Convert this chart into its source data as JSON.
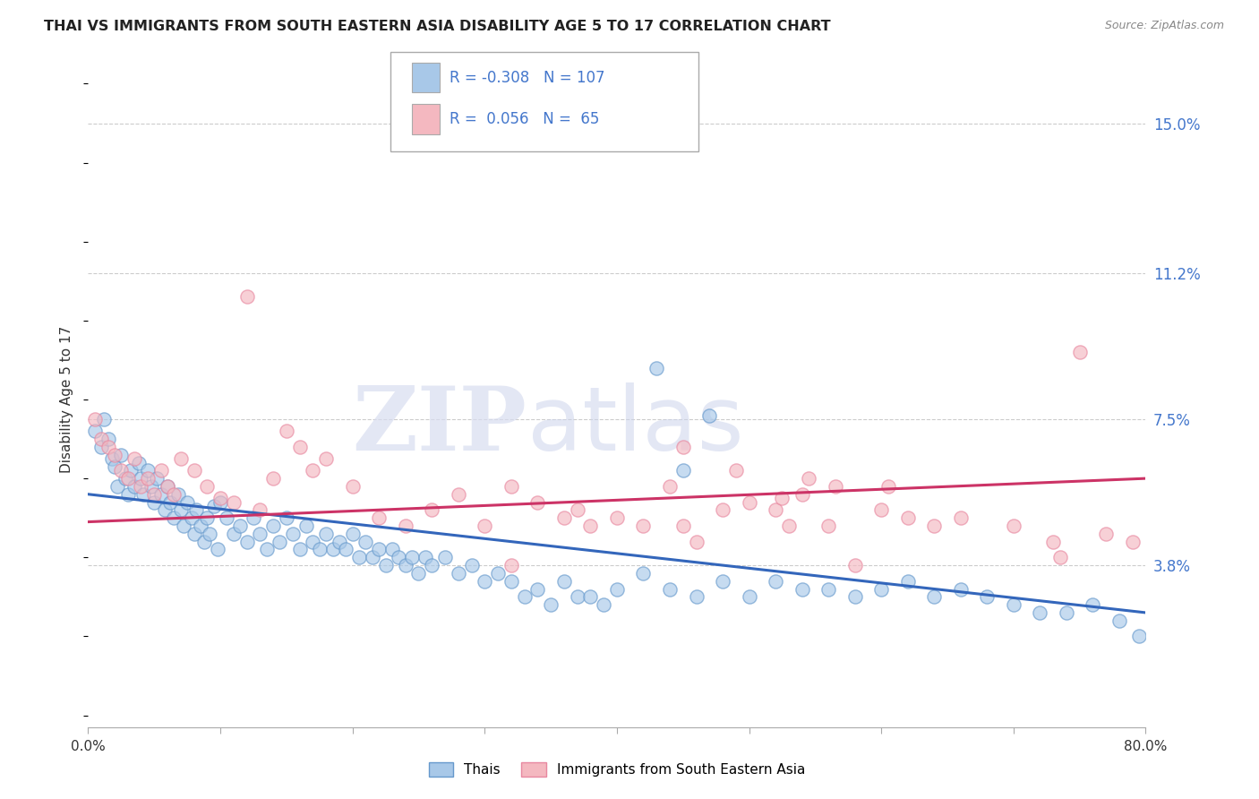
{
  "title": "THAI VS IMMIGRANTS FROM SOUTH EASTERN ASIA DISABILITY AGE 5 TO 17 CORRELATION CHART",
  "source": "Source: ZipAtlas.com",
  "ylabel": "Disability Age 5 to 17",
  "ytick_positions": [
    0.038,
    0.075,
    0.112,
    0.15
  ],
  "ytick_labels": [
    "3.8%",
    "7.5%",
    "11.2%",
    "15.0%"
  ],
  "xlim": [
    0.0,
    80.0
  ],
  "ylim": [
    -0.003,
    0.163
  ],
  "legend1_r": "-0.308",
  "legend1_n": "107",
  "legend2_r": "0.056",
  "legend2_n": "65",
  "legend_label1": "Thais",
  "legend_label2": "Immigrants from South Eastern Asia",
  "blue_color": "#a8c8e8",
  "pink_color": "#f4b8c0",
  "blue_edge_color": "#6699cc",
  "pink_edge_color": "#e888a0",
  "blue_line_color": "#3366bb",
  "pink_line_color": "#cc3366",
  "title_color": "#222222",
  "source_color": "#888888",
  "ytick_color": "#4477cc",
  "watermark_zip_color": "#d8ddf0",
  "watermark_atlas_color": "#ccd4ec",
  "blue_scatter_x": [
    0.5,
    1.0,
    1.2,
    1.5,
    1.8,
    2.0,
    2.2,
    2.5,
    2.8,
    3.0,
    3.2,
    3.5,
    3.8,
    4.0,
    4.2,
    4.5,
    4.8,
    5.0,
    5.2,
    5.5,
    5.8,
    6.0,
    6.2,
    6.5,
    6.8,
    7.0,
    7.2,
    7.5,
    7.8,
    8.0,
    8.2,
    8.5,
    8.8,
    9.0,
    9.2,
    9.5,
    9.8,
    10.0,
    10.5,
    11.0,
    11.5,
    12.0,
    12.5,
    13.0,
    13.5,
    14.0,
    14.5,
    15.0,
    15.5,
    16.0,
    16.5,
    17.0,
    17.5,
    18.0,
    18.5,
    19.0,
    19.5,
    20.0,
    20.5,
    21.0,
    21.5,
    22.0,
    22.5,
    23.0,
    23.5,
    24.0,
    24.5,
    25.0,
    25.5,
    26.0,
    27.0,
    28.0,
    29.0,
    30.0,
    31.0,
    32.0,
    33.0,
    34.0,
    35.0,
    36.0,
    37.0,
    38.0,
    39.0,
    40.0,
    42.0,
    44.0,
    46.0,
    48.0,
    50.0,
    52.0,
    54.0,
    56.0,
    58.0,
    60.0,
    62.0,
    64.0,
    66.0,
    68.0,
    70.0,
    72.0,
    74.0,
    76.0,
    78.0,
    79.5,
    43.0,
    45.0,
    47.0
  ],
  "blue_scatter_y": [
    0.072,
    0.068,
    0.075,
    0.07,
    0.065,
    0.063,
    0.058,
    0.066,
    0.06,
    0.056,
    0.062,
    0.058,
    0.064,
    0.06,
    0.056,
    0.062,
    0.058,
    0.054,
    0.06,
    0.056,
    0.052,
    0.058,
    0.054,
    0.05,
    0.056,
    0.052,
    0.048,
    0.054,
    0.05,
    0.046,
    0.052,
    0.048,
    0.044,
    0.05,
    0.046,
    0.053,
    0.042,
    0.054,
    0.05,
    0.046,
    0.048,
    0.044,
    0.05,
    0.046,
    0.042,
    0.048,
    0.044,
    0.05,
    0.046,
    0.042,
    0.048,
    0.044,
    0.042,
    0.046,
    0.042,
    0.044,
    0.042,
    0.046,
    0.04,
    0.044,
    0.04,
    0.042,
    0.038,
    0.042,
    0.04,
    0.038,
    0.04,
    0.036,
    0.04,
    0.038,
    0.04,
    0.036,
    0.038,
    0.034,
    0.036,
    0.034,
    0.03,
    0.032,
    0.028,
    0.034,
    0.03,
    0.03,
    0.028,
    0.032,
    0.036,
    0.032,
    0.03,
    0.034,
    0.03,
    0.034,
    0.032,
    0.032,
    0.03,
    0.032,
    0.034,
    0.03,
    0.032,
    0.03,
    0.028,
    0.026,
    0.026,
    0.028,
    0.024,
    0.02,
    0.088,
    0.062,
    0.076
  ],
  "pink_scatter_x": [
    0.5,
    1.0,
    1.5,
    2.0,
    2.5,
    3.0,
    3.5,
    4.0,
    4.5,
    5.0,
    5.5,
    6.0,
    6.5,
    7.0,
    8.0,
    9.0,
    10.0,
    11.0,
    12.0,
    13.0,
    14.0,
    15.0,
    16.0,
    17.0,
    18.0,
    20.0,
    22.0,
    24.0,
    26.0,
    28.0,
    30.0,
    32.0,
    34.0,
    36.0,
    37.0,
    38.0,
    40.0,
    42.0,
    44.0,
    45.0,
    46.0,
    48.0,
    50.0,
    52.0,
    53.0,
    54.0,
    56.0,
    58.0,
    60.0,
    62.0,
    64.0,
    66.0,
    70.0,
    73.0,
    75.0,
    77.0,
    79.0,
    32.0,
    45.0,
    49.0,
    52.5,
    54.5,
    56.5,
    60.5,
    73.5
  ],
  "pink_scatter_y": [
    0.075,
    0.07,
    0.068,
    0.066,
    0.062,
    0.06,
    0.065,
    0.058,
    0.06,
    0.056,
    0.062,
    0.058,
    0.056,
    0.065,
    0.062,
    0.058,
    0.055,
    0.054,
    0.106,
    0.052,
    0.06,
    0.072,
    0.068,
    0.062,
    0.065,
    0.058,
    0.05,
    0.048,
    0.052,
    0.056,
    0.048,
    0.058,
    0.054,
    0.05,
    0.052,
    0.048,
    0.05,
    0.048,
    0.058,
    0.048,
    0.044,
    0.052,
    0.054,
    0.052,
    0.048,
    0.056,
    0.048,
    0.038,
    0.052,
    0.05,
    0.048,
    0.05,
    0.048,
    0.044,
    0.092,
    0.046,
    0.044,
    0.038,
    0.068,
    0.062,
    0.055,
    0.06,
    0.058,
    0.058,
    0.04
  ],
  "blue_trend_x": [
    0.0,
    80.0
  ],
  "blue_trend_y": [
    0.056,
    0.026
  ],
  "pink_trend_x": [
    0.0,
    80.0
  ],
  "pink_trend_y": [
    0.049,
    0.06
  ]
}
